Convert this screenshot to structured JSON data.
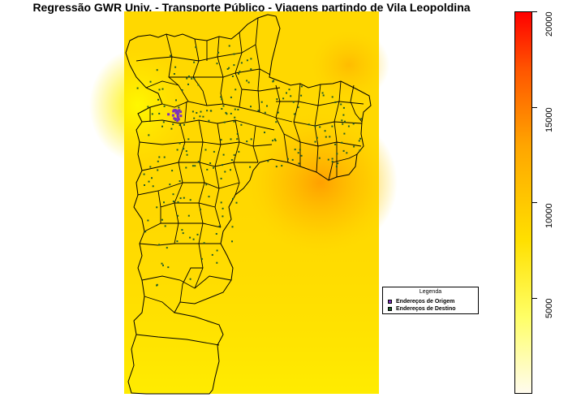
{
  "title": "Regressão GWR Univ. - Transporte Público - Viagens partindo de Vila Leopoldina",
  "legend": {
    "title": "Legenda",
    "items": [
      {
        "label": "Endereços de Origem",
        "color": "#7b2fbe"
      },
      {
        "label": "Endereços de Destino",
        "color": "#1e5d2a"
      }
    ]
  },
  "colorbar": {
    "min": 0,
    "max": 20000,
    "ticks": [
      "5000",
      "10000",
      "15000",
      "20000"
    ],
    "colors": [
      "#ffff99",
      "#ffee00",
      "#ff9900",
      "#ff0000"
    ]
  },
  "surface_colors": {
    "base": "#ffd500",
    "hot": "#ffa500",
    "light": "#fff200"
  }
}
